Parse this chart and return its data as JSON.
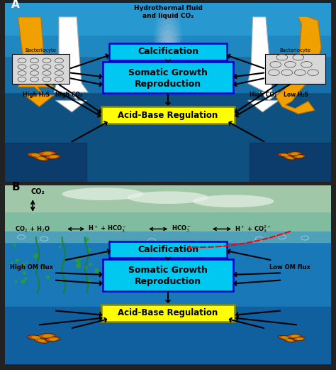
{
  "panel_A": {
    "label": "A",
    "bg_deep": "#1060a0",
    "bg_mid": "#1878b8",
    "bg_surface": "#2090d0",
    "title_hydrothermal": "Hydrothermal fluid\nand liquid CO₂",
    "label_high_h2s": "High H₂S",
    "label_high_co2_left": "High CO₂",
    "label_high_co2_right": "High CO₂",
    "label_low_h2s": "Low H₂S",
    "label_bacteriocyte": "Bacteriocyte",
    "box1_text": "Calcification",
    "box2_text_line1": "Somatic Growth",
    "box2_text_line2": "Reproduction",
    "box3_text": "Acid-Base Regulation",
    "box1_color": "#00c8f0",
    "box2_color": "#00c8f0",
    "box3_color": "#ffff00",
    "box_border": "#0000cc",
    "yellow_box_border": "#888800"
  },
  "panel_B": {
    "label": "B",
    "bg_sky": "#90c8b0",
    "bg_surface": "#60b8a0",
    "bg_water_top": "#30a0c8",
    "bg_water_deep": "#1070a8",
    "label_co2_top": "CO₂",
    "chem1": "CO₂ + H₂O",
    "chem2": "H⁺ + HCO₃⁻",
    "chem3": "HCO₃⁻",
    "chem4": "H⁺ + CO₃²⁻",
    "label_high_om": "High OM flux",
    "label_low_om": "Low OM flux",
    "box1_text": "Calcification",
    "box2_text_line1": "Somatic Growth",
    "box2_text_line2": "Reproduction",
    "box3_text": "Acid-Base Regulation",
    "box1_color": "#00c8f0",
    "box2_color": "#00c8f0",
    "box3_color": "#ffff00",
    "box_border": "#0000cc",
    "yellow_box_border": "#888800"
  }
}
